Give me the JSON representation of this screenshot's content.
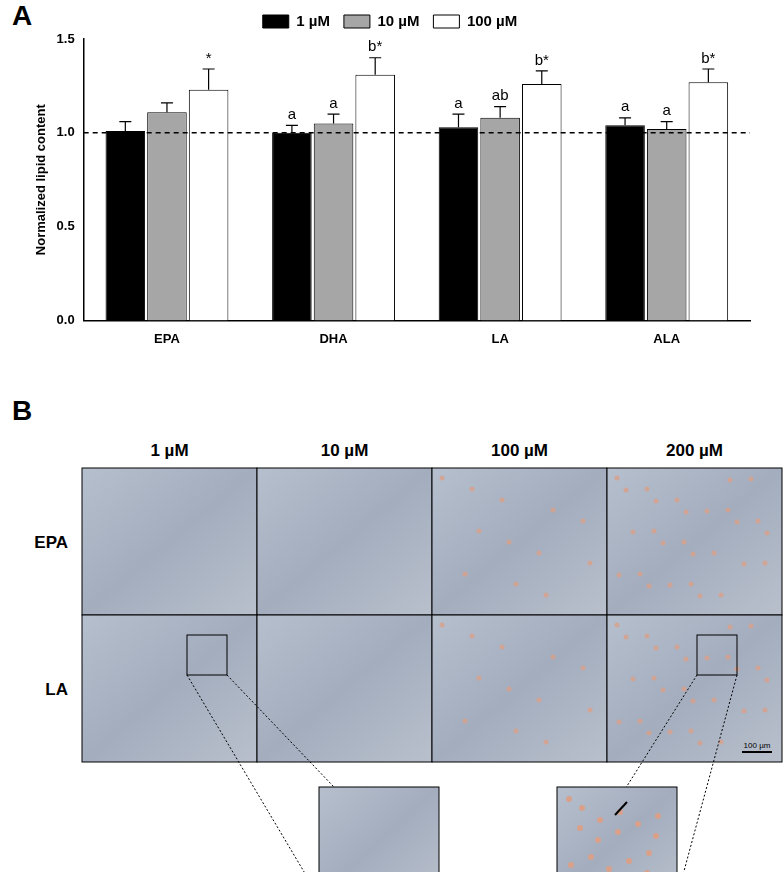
{
  "chart_data": {
    "type": "bar",
    "panel_label": "A",
    "y_label": "Normalized lipid content",
    "categories": [
      "EPA",
      "DHA",
      "LA",
      "ALA"
    ],
    "series": [
      {
        "name": "1 µM",
        "color": "#000000",
        "values": [
          1.01,
          1.0,
          1.03,
          1.04
        ],
        "errors": [
          0.05,
          0.04,
          0.07,
          0.04
        ],
        "annotations": [
          null,
          "a",
          "a",
          "a"
        ]
      },
      {
        "name": "10 µM",
        "color": "#a6a6a6",
        "values": [
          1.11,
          1.05,
          1.08,
          1.02
        ],
        "errors": [
          0.05,
          0.05,
          0.06,
          0.04
        ],
        "annotations": [
          null,
          "a",
          "ab",
          "a"
        ]
      },
      {
        "name": "100 µM",
        "color": "#ffffff",
        "values": [
          1.23,
          1.31,
          1.26,
          1.27
        ],
        "errors": [
          0.11,
          0.09,
          0.07,
          0.07
        ],
        "annotations": [
          "*",
          "b*",
          "b*",
          "b*"
        ]
      }
    ],
    "reference_line": 1.0,
    "ylim": [
      0,
      1.5
    ],
    "yticks": [
      {
        "value": 0,
        "label": "0.0"
      },
      {
        "value": 0.5,
        "label": "0.5"
      },
      {
        "value": 1,
        "label": "1.0"
      },
      {
        "value": 1.5,
        "label": "1.5"
      }
    ],
    "grid": false,
    "legend": "top"
  },
  "panel_b": {
    "panel_label": "B",
    "columns": [
      "1 µM",
      "10 µM",
      "100 µM",
      "200 µM"
    ],
    "rows": [
      "EPA",
      "LA"
    ],
    "scale_bar": "100 µm"
  }
}
